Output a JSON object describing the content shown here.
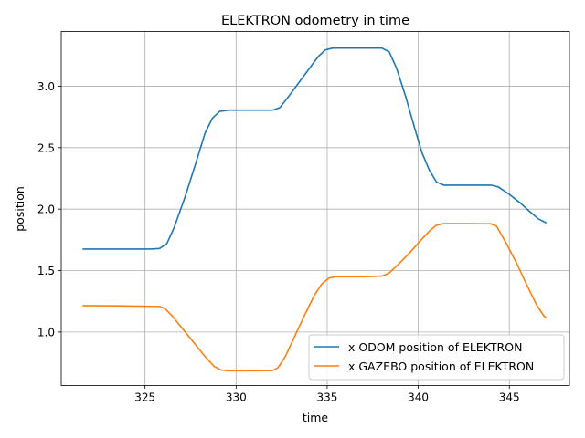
{
  "chart_data": {
    "type": "line",
    "title": "ELEKTRON odometry in time",
    "xlabel": "time",
    "ylabel": "position",
    "xlim": [
      320.4,
      348.3
    ],
    "ylim": [
      0.565,
      3.445
    ],
    "xticks": [
      325,
      330,
      335,
      340,
      345
    ],
    "yticks": [
      1.0,
      1.5,
      2.0,
      2.5,
      3.0
    ],
    "xtick_labels": [
      "325",
      "330",
      "335",
      "340",
      "345"
    ],
    "ytick_labels": [
      "1.0",
      "1.5",
      "2.0",
      "2.5",
      "3.0"
    ],
    "grid": true,
    "legend_position": "lower-right",
    "series": [
      {
        "name": "x ODOM position of ELEKTRON",
        "color": "#1f77b4",
        "points": [
          [
            321.6,
            1.675
          ],
          [
            325.3,
            1.675
          ],
          [
            325.8,
            1.68
          ],
          [
            326.2,
            1.72
          ],
          [
            326.6,
            1.85
          ],
          [
            327.2,
            2.1
          ],
          [
            327.8,
            2.38
          ],
          [
            328.3,
            2.62
          ],
          [
            328.7,
            2.74
          ],
          [
            329.1,
            2.795
          ],
          [
            329.6,
            2.805
          ],
          [
            331.0,
            2.805
          ],
          [
            332.0,
            2.805
          ],
          [
            332.4,
            2.825
          ],
          [
            332.8,
            2.9
          ],
          [
            333.4,
            3.02
          ],
          [
            334.0,
            3.14
          ],
          [
            334.5,
            3.24
          ],
          [
            334.9,
            3.295
          ],
          [
            335.3,
            3.31
          ],
          [
            336.5,
            3.31
          ],
          [
            337.5,
            3.31
          ],
          [
            338.0,
            3.31
          ],
          [
            338.4,
            3.28
          ],
          [
            338.8,
            3.15
          ],
          [
            339.3,
            2.92
          ],
          [
            339.8,
            2.66
          ],
          [
            340.2,
            2.46
          ],
          [
            340.6,
            2.32
          ],
          [
            341.0,
            2.22
          ],
          [
            341.4,
            2.195
          ],
          [
            342.5,
            2.195
          ],
          [
            344.0,
            2.195
          ],
          [
            344.4,
            2.18
          ],
          [
            345.0,
            2.12
          ],
          [
            345.6,
            2.05
          ],
          [
            346.2,
            1.97
          ],
          [
            346.6,
            1.92
          ],
          [
            347.0,
            1.89
          ]
        ]
      },
      {
        "name": "x GAZEBO position of ELEKTRON",
        "color": "#ff7f0e",
        "points": [
          [
            321.6,
            1.215
          ],
          [
            323.5,
            1.213
          ],
          [
            325.8,
            1.208
          ],
          [
            326.1,
            1.19
          ],
          [
            326.5,
            1.13
          ],
          [
            327.1,
            1.02
          ],
          [
            327.7,
            0.91
          ],
          [
            328.3,
            0.8
          ],
          [
            328.8,
            0.72
          ],
          [
            329.2,
            0.69
          ],
          [
            329.7,
            0.685
          ],
          [
            331.0,
            0.685
          ],
          [
            332.0,
            0.687
          ],
          [
            332.3,
            0.71
          ],
          [
            332.7,
            0.8
          ],
          [
            333.2,
            0.96
          ],
          [
            333.8,
            1.15
          ],
          [
            334.3,
            1.3
          ],
          [
            334.7,
            1.39
          ],
          [
            335.1,
            1.44
          ],
          [
            335.5,
            1.45
          ],
          [
            337.0,
            1.45
          ],
          [
            338.0,
            1.455
          ],
          [
            338.4,
            1.48
          ],
          [
            338.9,
            1.55
          ],
          [
            339.5,
            1.64
          ],
          [
            340.1,
            1.74
          ],
          [
            340.6,
            1.82
          ],
          [
            341.0,
            1.87
          ],
          [
            341.4,
            1.882
          ],
          [
            342.5,
            1.882
          ],
          [
            344.0,
            1.88
          ],
          [
            344.3,
            1.86
          ],
          [
            344.8,
            1.73
          ],
          [
            345.4,
            1.56
          ],
          [
            346.0,
            1.37
          ],
          [
            346.5,
            1.22
          ],
          [
            346.9,
            1.13
          ],
          [
            347.0,
            1.12
          ]
        ]
      }
    ]
  }
}
